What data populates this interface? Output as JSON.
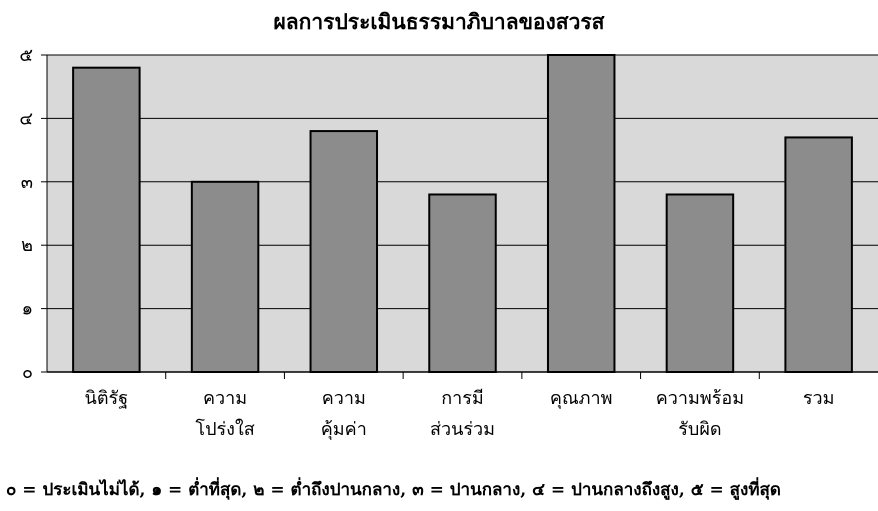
{
  "chart_data": {
    "type": "bar",
    "title": "ผลการประเมินธรรมาภิบาลของสวรส",
    "categories": [
      [
        "นิติรัฐ"
      ],
      [
        "ความ",
        "โปร่งใส"
      ],
      [
        "ความ",
        "คุ้มค่า"
      ],
      [
        "การมี",
        "ส่วนร่วม"
      ],
      [
        "คุณภาพ"
      ],
      [
        "ความพร้อม",
        "รับผิด"
      ],
      [
        "รวม"
      ]
    ],
    "values": [
      4.8,
      3.0,
      3.8,
      2.8,
      5.0,
      2.8,
      3.7
    ],
    "ylim": [
      0,
      5
    ],
    "yticks": [
      0,
      1,
      2,
      3,
      4,
      5
    ],
    "ytick_labels": [
      "๐",
      "๑",
      "๒",
      "๓",
      "๔",
      "๕"
    ],
    "grid": true,
    "colors": {
      "plot_bg": "#d9d9d9",
      "bar_fill": "#8c8c8c",
      "bar_edge": "#000000",
      "grid": "#000000"
    }
  },
  "note": "๐ = ประเมินไม่ได้, ๑ = ต่ำที่สุด, ๒ = ต่ำถึงปานกลาง, ๓ = ปานกลาง, ๔ = ปานกลางถึงสูง, ๕ = สูงที่สุด"
}
